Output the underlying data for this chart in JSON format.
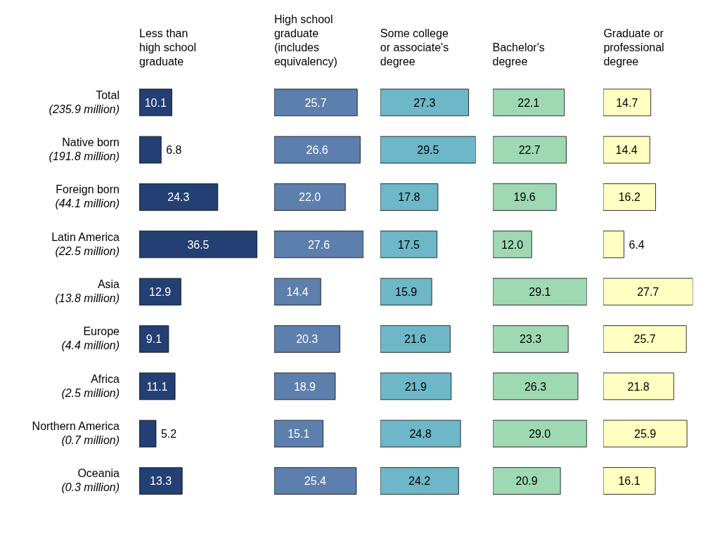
{
  "chart_data": [
    {
      "type": "bar",
      "orientation": "horizontal",
      "title": "Less than\nhigh school\ngraduate",
      "categories": [
        "Total\n(235.9 million)",
        "Native born\n(191.8 million)",
        "Foreign born\n(44.1 million)",
        "Latin America\n(22.5 million)",
        "Asia\n(13.8 million)",
        "Europe\n(4.4 million)",
        "Africa\n(2.5 million)",
        "Northern America\n(0.7 million)",
        "Oceania\n(0.3 million)"
      ],
      "values": [
        10.1,
        6.8,
        24.3,
        36.5,
        12.9,
        9.1,
        11.1,
        5.2,
        13.3
      ],
      "value_labels": [
        "10.1",
        "6.8",
        "24.3",
        "36.5",
        "12.9",
        "9.1",
        "11.1",
        "5.2",
        "13.3"
      ],
      "color": "#233f73",
      "tick_labels": "y"
    },
    {
      "type": "bar",
      "orientation": "horizontal",
      "title": "High school\ngraduate\n(includes\nequivalency)",
      "categories": [
        null,
        null,
        null,
        null,
        null,
        null,
        null,
        null,
        null
      ],
      "values": [
        25.7,
        26.6,
        22.0,
        27.6,
        14.4,
        20.3,
        18.9,
        15.1,
        25.4
      ],
      "value_labels": [
        "25.7",
        "26.6",
        "22.0",
        "27.6",
        "14.4",
        "20.3",
        "18.9",
        "15.1",
        "25.4"
      ],
      "color": "#5d7fae",
      "tick_labels": false
    },
    {
      "type": "bar",
      "orientation": "horizontal",
      "title": "Some college\nor associate's\ndegree",
      "categories": [
        null,
        null,
        null,
        null,
        null,
        null,
        null,
        null,
        null
      ],
      "values": [
        27.3,
        29.5,
        17.8,
        17.5,
        15.9,
        21.6,
        21.9,
        24.8,
        24.2
      ],
      "value_labels": [
        "27.3",
        "29.5",
        "17.8",
        "17.5",
        "15.9",
        "21.6",
        "21.9",
        "24.8",
        "24.2"
      ],
      "color": "#6db7c8",
      "tick_labels": false
    },
    {
      "type": "bar",
      "orientation": "horizontal",
      "title": "Bachelor's\ndegree",
      "categories": [
        null,
        null,
        null,
        null,
        null,
        null,
        null,
        null,
        null
      ],
      "values": [
        22.1,
        22.7,
        19.6,
        12.0,
        29.1,
        23.3,
        26.3,
        29.0,
        20.9
      ],
      "value_labels": [
        "22.1",
        "22.7",
        "19.6",
        "12.0",
        "29.1",
        "23.3",
        "26.3",
        "29.0",
        "20.9"
      ],
      "color": "#9ed9b3",
      "tick_labels": false
    },
    {
      "type": "bar",
      "orientation": "horizontal",
      "title": "Graduate or\nprofessional\ndegree",
      "categories": [
        null,
        null,
        null,
        null,
        null,
        null,
        null,
        null,
        null
      ],
      "values": [
        14.7,
        14.4,
        16.2,
        6.4,
        27.7,
        25.7,
        21.8,
        25.9,
        16.1
      ],
      "value_labels": [
        "14.7",
        "14.4",
        "16.2",
        "6.4",
        "27.7",
        "25.7",
        "21.8",
        "25.9",
        "16.1"
      ],
      "color": "#ffffc2",
      "tick_labels": false
    }
  ]
}
